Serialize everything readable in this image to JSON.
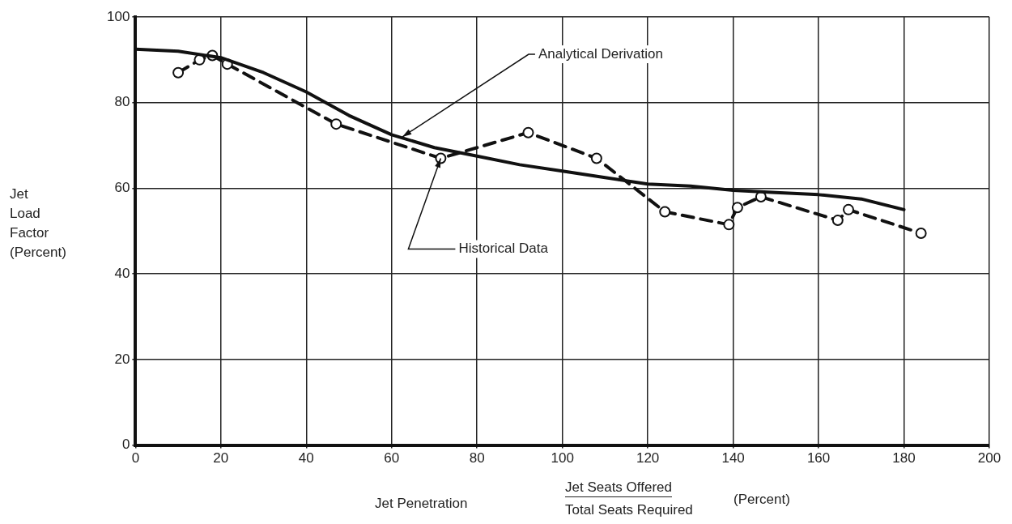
{
  "chart_data": {
    "type": "line",
    "xlabel": "Jet Penetration",
    "ylabel": "Jet Load Factor (Percent)",
    "xlim": [
      0,
      200
    ],
    "xticks": [
      0,
      20,
      40,
      60,
      80,
      100,
      120,
      140,
      160,
      180,
      200
    ],
    "ylim": [
      0,
      100
    ],
    "yticks": [
      0,
      20,
      40,
      60,
      80,
      100
    ],
    "grid": true,
    "legend": false,
    "series": [
      {
        "color": "#111111",
        "line_style": "solid",
        "marker": "none",
        "x": [
          0,
          10,
          20,
          30,
          40,
          50,
          60,
          70,
          80,
          90,
          100,
          110,
          120,
          130,
          140,
          150,
          160,
          170,
          180
        ],
        "values": [
          92.5,
          92,
          90.5,
          87,
          82.5,
          77,
          72.5,
          69.5,
          67.5,
          65.5,
          64,
          62.5,
          61,
          60.5,
          59.5,
          59,
          58.5,
          57.5,
          55
        ]
      },
      {
        "color": "#111111",
        "line_style": "dashed",
        "marker": "circle",
        "x": [
          10,
          15,
          18,
          21.5,
          47,
          71.5,
          92,
          108,
          124,
          139,
          141,
          146.5,
          164.5,
          167,
          184
        ],
        "values": [
          87,
          90,
          91,
          89,
          75,
          67,
          73,
          67,
          54.5,
          51.5,
          55.5,
          58,
          52.5,
          55,
          49.5
        ]
      }
    ],
    "annotations": [
      {
        "text": "Analytical Derivation",
        "x": 62.5,
        "y": 72
      },
      {
        "text": "Historical Data",
        "x": 71.5,
        "y": 67
      },
      "Jet Seats Offered",
      "Total Seats Required",
      "(Percent)"
    ]
  }
}
